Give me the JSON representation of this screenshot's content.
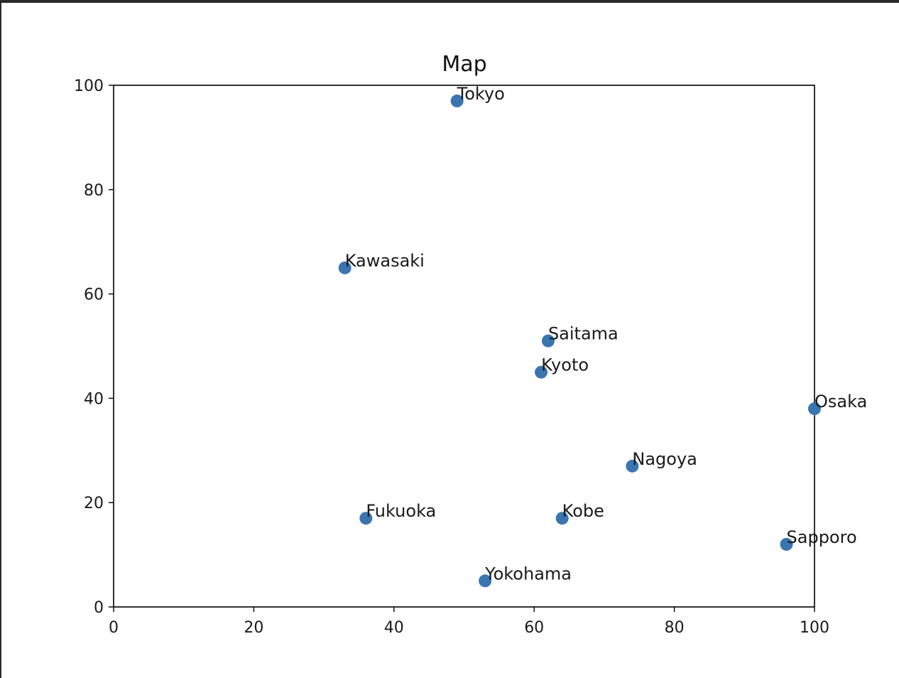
{
  "chart_data": {
    "type": "scatter",
    "title": "Map",
    "xlabel": "",
    "ylabel": "",
    "xlim": [
      0,
      100
    ],
    "ylim": [
      0,
      100
    ],
    "x_ticks": [
      0,
      20,
      40,
      60,
      80,
      100
    ],
    "y_ticks": [
      0,
      20,
      40,
      60,
      80,
      100
    ],
    "grid": false,
    "marker_color": "#3a75b0",
    "points": [
      {
        "label": "Tokyo",
        "x": 49,
        "y": 97
      },
      {
        "label": "Kawasaki",
        "x": 33,
        "y": 65
      },
      {
        "label": "Saitama",
        "x": 62,
        "y": 51
      },
      {
        "label": "Kyoto",
        "x": 61,
        "y": 45
      },
      {
        "label": "Osaka",
        "x": 100,
        "y": 38
      },
      {
        "label": "Nagoya",
        "x": 74,
        "y": 27
      },
      {
        "label": "Fukuoka",
        "x": 36,
        "y": 17
      },
      {
        "label": "Kobe",
        "x": 64,
        "y": 17
      },
      {
        "label": "Sapporo",
        "x": 96,
        "y": 12
      },
      {
        "label": "Yokohama",
        "x": 53,
        "y": 5
      }
    ]
  }
}
